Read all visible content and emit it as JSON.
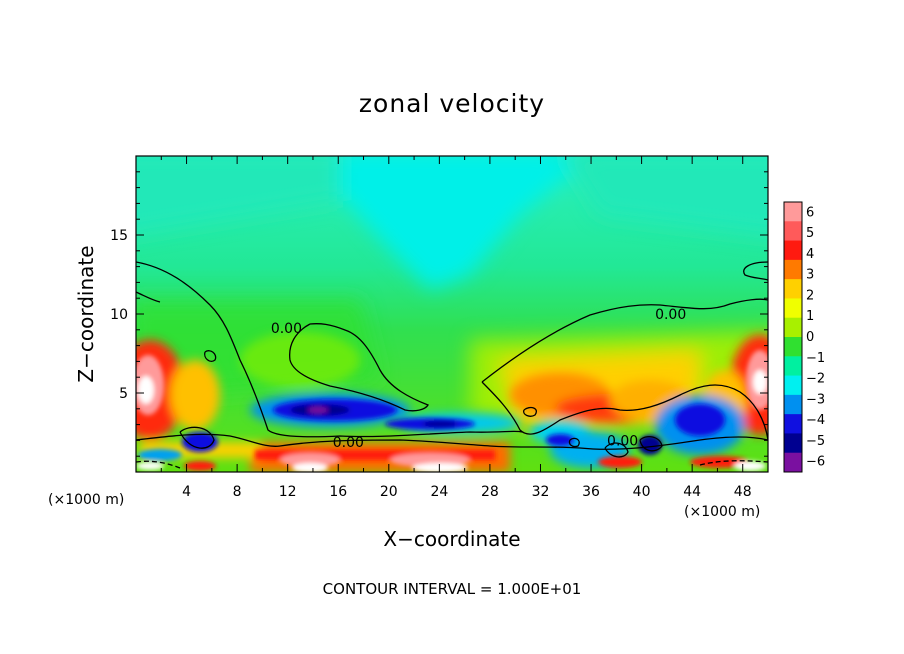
{
  "chart_data": {
    "type": "heatmap",
    "title": "zonal velocity",
    "xlabel": "X−coordinate",
    "ylabel": "Z−coordinate",
    "x_unit_left": "(×1000 m)",
    "x_unit_right": "(×1000 m)",
    "footer": "CONTOUR INTERVAL = 1.000E+01",
    "xlim": [
      0,
      50
    ],
    "ylim": [
      0,
      20
    ],
    "x_ticks": [
      4,
      8,
      12,
      16,
      20,
      24,
      28,
      32,
      36,
      40,
      44,
      48
    ],
    "x_tick_labels": [
      "4",
      "8",
      "12",
      "16",
      "20",
      "24",
      "28",
      "32",
      "36",
      "40",
      "44",
      "48"
    ],
    "y_ticks": [
      5,
      10,
      15
    ],
    "y_tick_labels": [
      "5",
      "10",
      "15"
    ],
    "colorbar": {
      "levels": [
        6,
        5,
        4,
        3,
        2,
        1,
        0,
        -1,
        -2,
        -3,
        -4,
        -5,
        -6
      ],
      "labels": [
        "6",
        "5",
        "4",
        "3",
        "2",
        "1",
        "0",
        "−1",
        "−2",
        "−3",
        "−4",
        "−5",
        "−6"
      ],
      "colors": [
        "#ff9a9a",
        "#ff5a5a",
        "#ff1a10",
        "#ff7a00",
        "#ffd000",
        "#f0ff00",
        "#a8f000",
        "#30e030",
        "#00f0a0",
        "#00f0f0",
        "#0090f0",
        "#1010e0",
        "#000090",
        "#7a10a0"
      ]
    },
    "contour_labels": [
      {
        "text": "0.00",
        "x": 11.9,
        "y": 9.1
      },
      {
        "text": "0.00",
        "x": 16.8,
        "y": 1.9
      },
      {
        "text": "0.00",
        "x": 42.3,
        "y": 10.0
      },
      {
        "text": "0.00",
        "x": 38.5,
        "y": 2.0
      }
    ],
    "regions": [
      {
        "name": "upper-cyan-core",
        "x": [
          18,
          31
        ],
        "y": [
          13,
          20
        ],
        "value": -2.3
      },
      {
        "name": "mid-layer-green",
        "x": [
          0,
          50
        ],
        "y": [
          5,
          12
        ],
        "value": 0.2
      },
      {
        "name": "negative-jet-left",
        "x": [
          10,
          24
        ],
        "y": [
          2.5,
          4.8
        ],
        "value": -4.5
      },
      {
        "name": "positive-lower-band",
        "x": [
          10,
          30
        ],
        "y": [
          0.6,
          2.0
        ],
        "value": 4.5
      },
      {
        "name": "positive-left-lobe",
        "x": [
          0,
          5
        ],
        "y": [
          3.5,
          8
        ],
        "value": 4.5
      },
      {
        "name": "positive-right-lobe",
        "x": [
          45,
          50
        ],
        "y": [
          3,
          8
        ],
        "value": 4.5
      },
      {
        "name": "positive-mid-lobe",
        "x": [
          29,
          45
        ],
        "y": [
          3,
          7
        ],
        "value": 2.5
      },
      {
        "name": "negative-right-lower",
        "x": [
          32,
          46
        ],
        "y": [
          0.5,
          3.5
        ],
        "value": -4.0
      }
    ]
  }
}
